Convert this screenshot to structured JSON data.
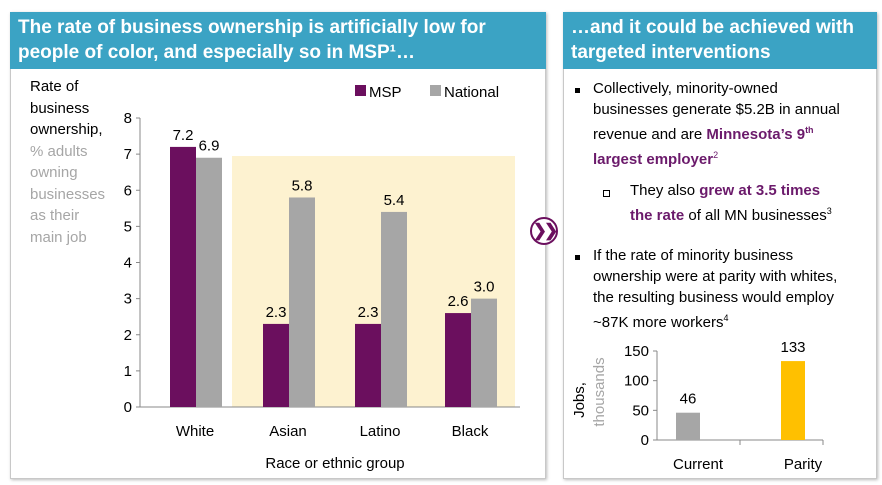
{
  "left": {
    "title": "The rate of business ownership is artificially low for people of color, and especially so in MSP¹…",
    "ylabel_main": "Rate of business ownership,",
    "ylabel_sub": "% adults owning businesses as their main job"
  },
  "right": {
    "title": "…and it could be achieved with targeted interventions",
    "bullet1": {
      "text": "Collectively, minority-owned businesses generate $5.2B in annual revenue and are ",
      "highlight": "Minnesota’s 9",
      "sup_th": "th",
      "highlight2": "largest employer",
      "sup": "2"
    },
    "sub1": {
      "text": "They also ",
      "highlight": "grew at 3.5 times the rate",
      "rest": " of all MN businesses",
      "sup": "3"
    },
    "bullet2": {
      "text": "If the rate of minority business ownership were at parity with whites, the resulting business would employ ~87K more workers",
      "sup": "4"
    }
  },
  "arrow_icon": "double-chevron-right",
  "colors": {
    "header": "#3ba3c4",
    "msp": "#6b0f5e",
    "national": "#a6a6a6",
    "highlight_bg": "#fdf2d0",
    "parity": "#ffc000",
    "accent_text": "#6b1a6b"
  },
  "chart_data": [
    {
      "type": "bar",
      "categories": [
        "White",
        "Asian",
        "Latino",
        "Black"
      ],
      "series": [
        {
          "name": "MSP",
          "values": [
            7.2,
            2.3,
            2.3,
            2.6
          ]
        },
        {
          "name": "National",
          "values": [
            6.9,
            5.8,
            5.4,
            3.0
          ]
        }
      ],
      "value_labels": [
        [
          "7.2",
          "2.3",
          "2.3",
          "2.6"
        ],
        [
          "6.9",
          "5.8",
          "5.4",
          "3.0"
        ]
      ],
      "xlabel": "Race or ethnic group",
      "ylim": [
        0,
        8
      ],
      "yticks": [
        "0",
        "1",
        "2",
        "3",
        "4",
        "5",
        "6",
        "7",
        "8"
      ],
      "legend": "top-right",
      "grid": false,
      "highlighted_categories": [
        "Asian",
        "Latino",
        "Black"
      ]
    },
    {
      "type": "bar",
      "categories": [
        "Current",
        "Parity"
      ],
      "values": [
        46,
        133
      ],
      "value_labels": [
        "46",
        "133"
      ],
      "ylabel": "Jobs,",
      "ylabel_sub": "thousands",
      "ylim": [
        0,
        150
      ],
      "yticks": [
        "0",
        "50",
        "100",
        "150"
      ],
      "grid": false
    }
  ]
}
